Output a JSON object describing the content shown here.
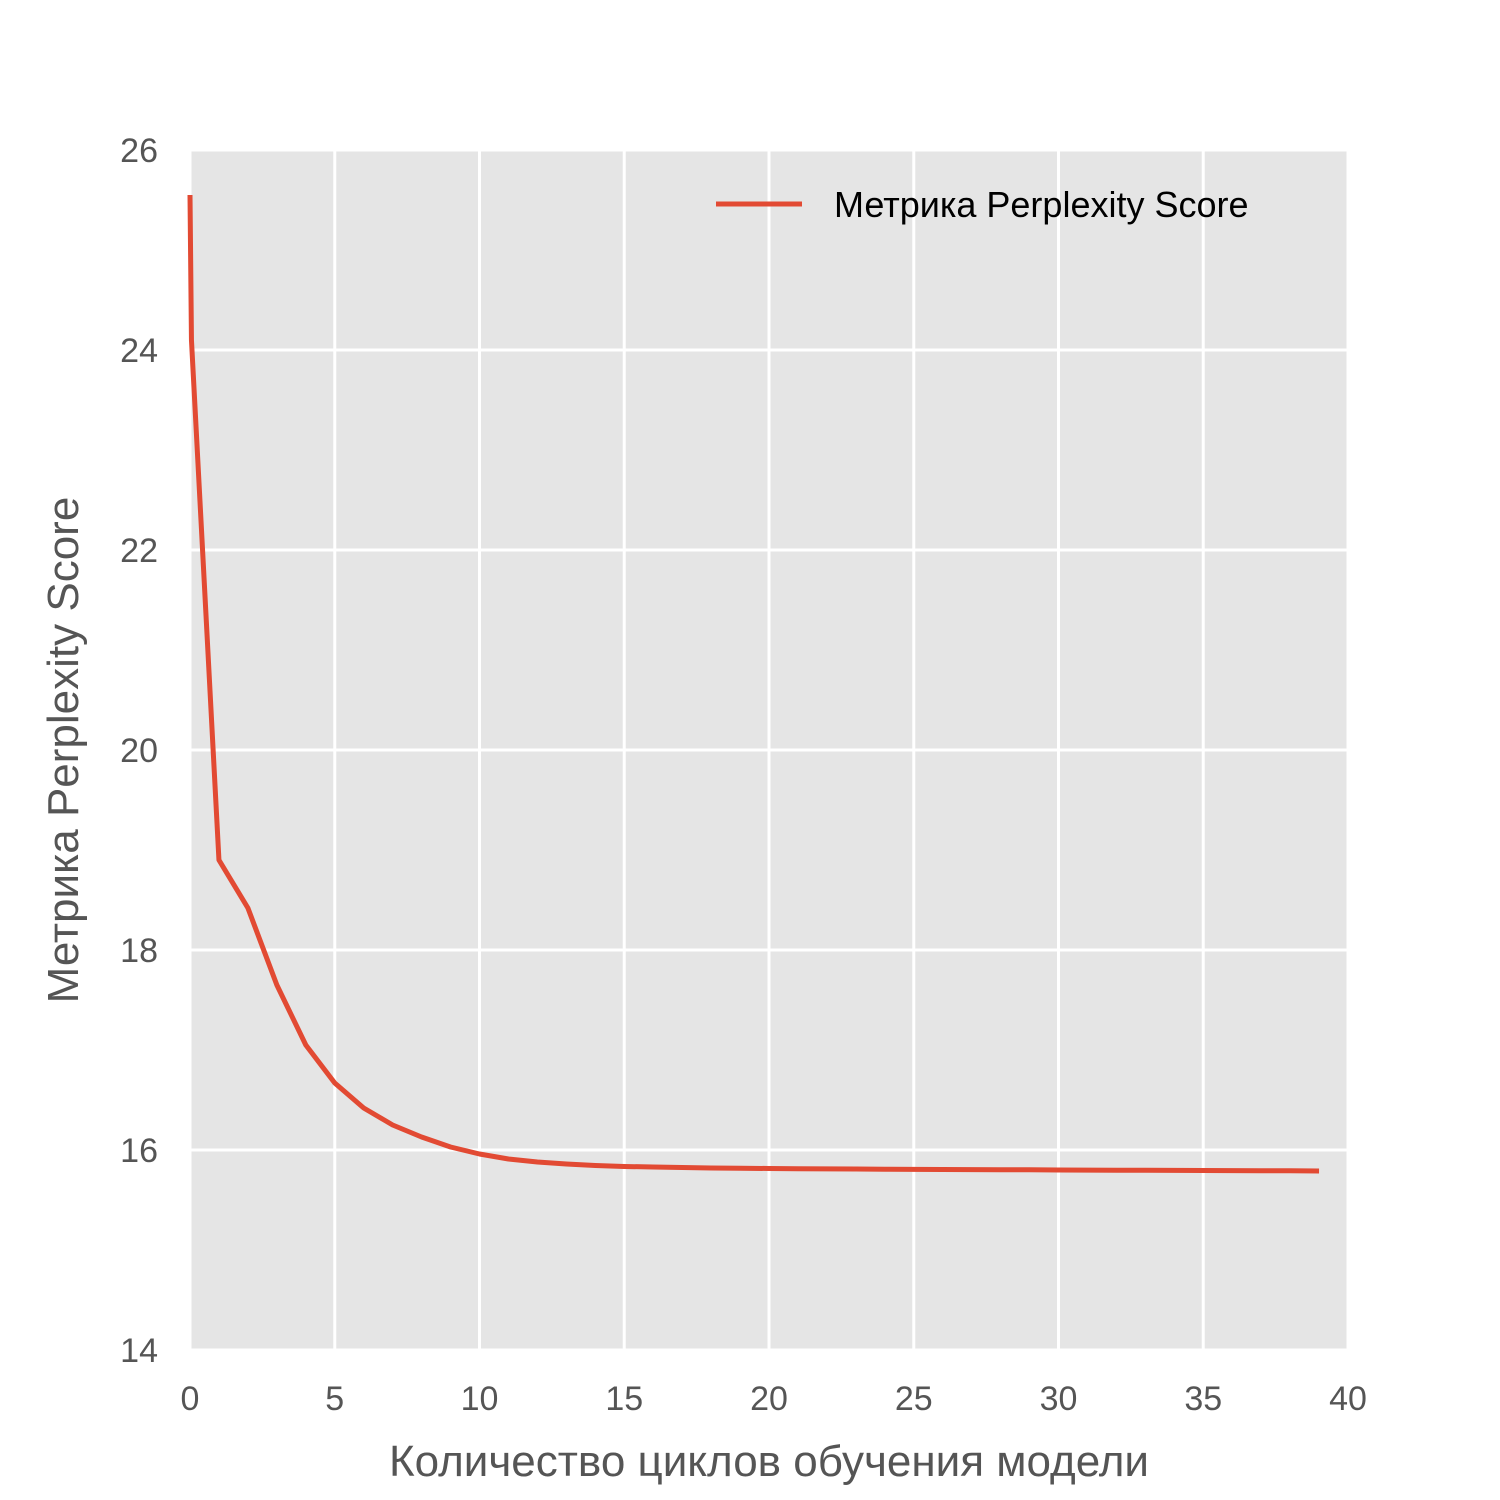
{
  "chart_data": {
    "type": "line",
    "title": "",
    "xlabel": "Количество циклов обучения модели",
    "ylabel": "Метрика Perplexity Score",
    "xlim": [
      0,
      40
    ],
    "ylim": [
      14,
      26
    ],
    "xticks": [
      "0",
      "5",
      "10",
      "15",
      "20",
      "25",
      "30",
      "35",
      "40"
    ],
    "yticks": [
      "14",
      "16",
      "18",
      "20",
      "22",
      "24",
      "26"
    ],
    "grid": true,
    "legend_position": "top-right",
    "series": [
      {
        "name": "Метрика Perplexity Score",
        "color": "#e24a33",
        "x": [
          0,
          0.05,
          1,
          2,
          3,
          4,
          5,
          6,
          7,
          8,
          9,
          10,
          11,
          12,
          13,
          14,
          15,
          16,
          17,
          18,
          19,
          20,
          21,
          22,
          23,
          24,
          25,
          26,
          27,
          28,
          29,
          30,
          31,
          32,
          33,
          34,
          35,
          36,
          37,
          38,
          39
        ],
        "y": [
          25.55,
          24.1,
          18.9,
          18.42,
          17.65,
          17.05,
          16.67,
          16.42,
          16.25,
          16.13,
          16.03,
          15.96,
          15.91,
          15.88,
          15.86,
          15.845,
          15.835,
          15.83,
          15.825,
          15.82,
          15.818,
          15.815,
          15.813,
          15.811,
          15.81,
          15.808,
          15.806,
          15.805,
          15.804,
          15.803,
          15.802,
          15.8,
          15.799,
          15.798,
          15.797,
          15.796,
          15.795,
          15.794,
          15.793,
          15.792,
          15.79
        ]
      }
    ]
  }
}
